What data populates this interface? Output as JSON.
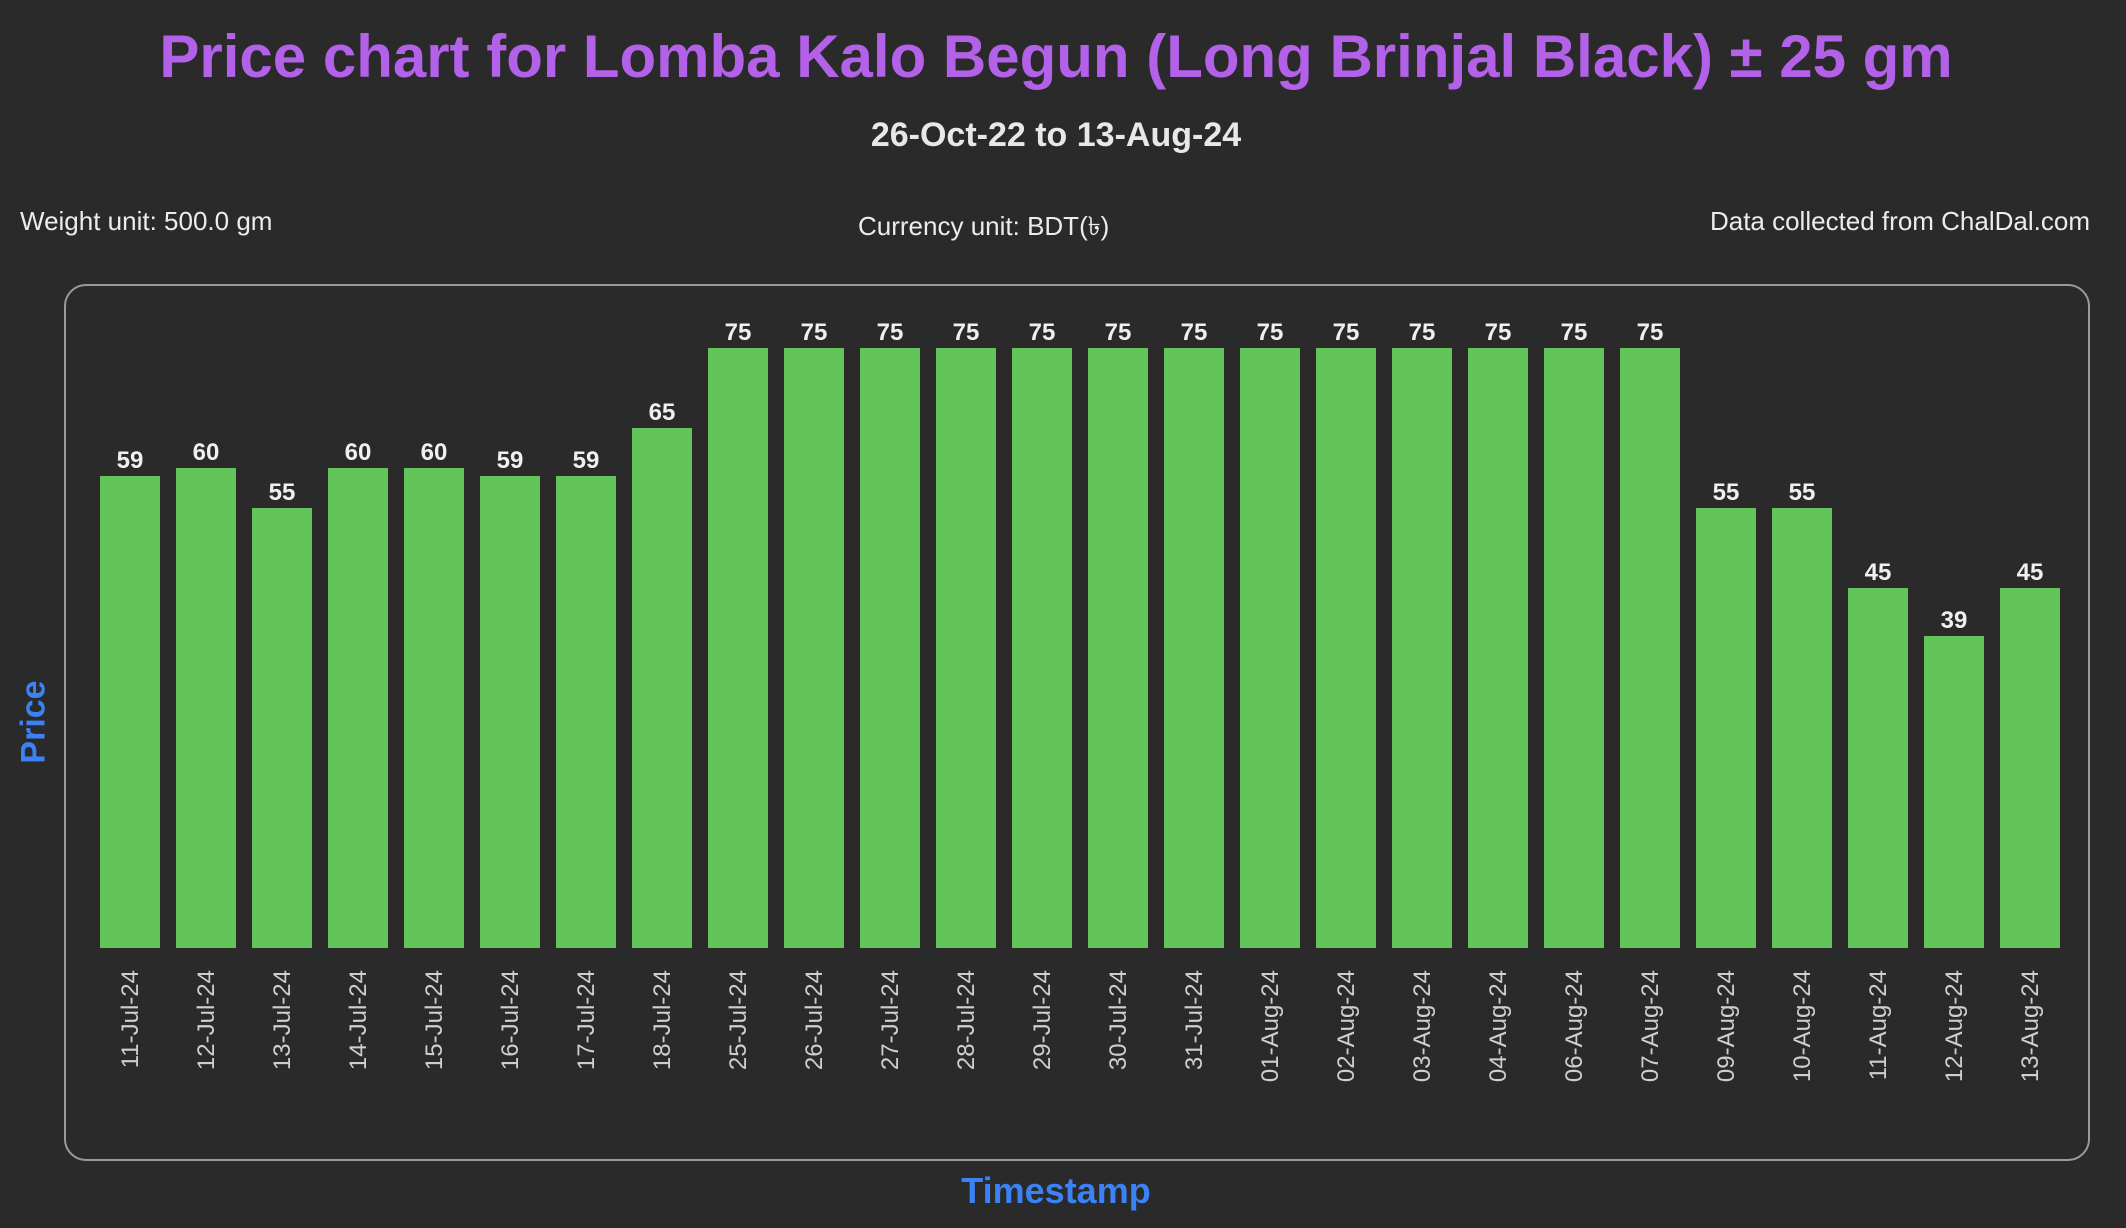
{
  "header": {
    "title": "Price chart for Lomba Kalo Begun (Long Brinjal Black) ± 25 gm",
    "subtitle": "26-Oct-22 to 13-Aug-24"
  },
  "meta": {
    "weight_unit": "Weight unit: 500.0 gm",
    "currency_unit": "Currency unit: BDT(৳)",
    "source": "Data collected from ChalDal.com"
  },
  "colors": {
    "title": "#b361e8",
    "axis_label": "#3b82f6",
    "bar": "#63c45a",
    "background": "#2a2a2a"
  },
  "chart_data": {
    "type": "bar",
    "title": "Price chart for Lomba Kalo Begun (Long Brinjal Black) ± 25 gm",
    "subtitle": "26-Oct-22 to 13-Aug-24",
    "xlabel": "Timestamp",
    "ylabel": "Price",
    "categories": [
      "11-Jul-24",
      "12-Jul-24",
      "13-Jul-24",
      "14-Jul-24",
      "15-Jul-24",
      "16-Jul-24",
      "17-Jul-24",
      "18-Jul-24",
      "25-Jul-24",
      "26-Jul-24",
      "27-Jul-24",
      "28-Jul-24",
      "29-Jul-24",
      "30-Jul-24",
      "31-Jul-24",
      "01-Aug-24",
      "02-Aug-24",
      "03-Aug-24",
      "04-Aug-24",
      "06-Aug-24",
      "07-Aug-24",
      "09-Aug-24",
      "10-Aug-24",
      "11-Aug-24",
      "12-Aug-24",
      "13-Aug-24"
    ],
    "values": [
      59,
      60,
      55,
      60,
      60,
      59,
      59,
      65,
      75,
      75,
      75,
      75,
      75,
      75,
      75,
      75,
      75,
      75,
      75,
      75,
      75,
      55,
      55,
      45,
      39,
      45
    ],
    "ylim": [
      0,
      75
    ],
    "grid": false,
    "data_labels": true
  }
}
